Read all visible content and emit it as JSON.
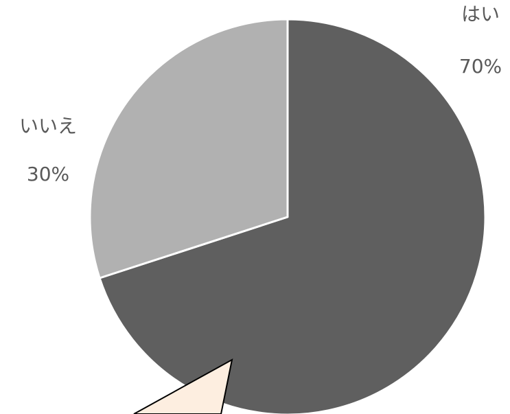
{
  "chart_data": {
    "type": "pie",
    "categories": [
      "はい",
      "いいえ"
    ],
    "values": [
      70,
      30
    ],
    "value_labels": [
      "70%",
      "30%"
    ],
    "colors": [
      "#5f5f5f",
      "#b1b1b1"
    ]
  }
}
